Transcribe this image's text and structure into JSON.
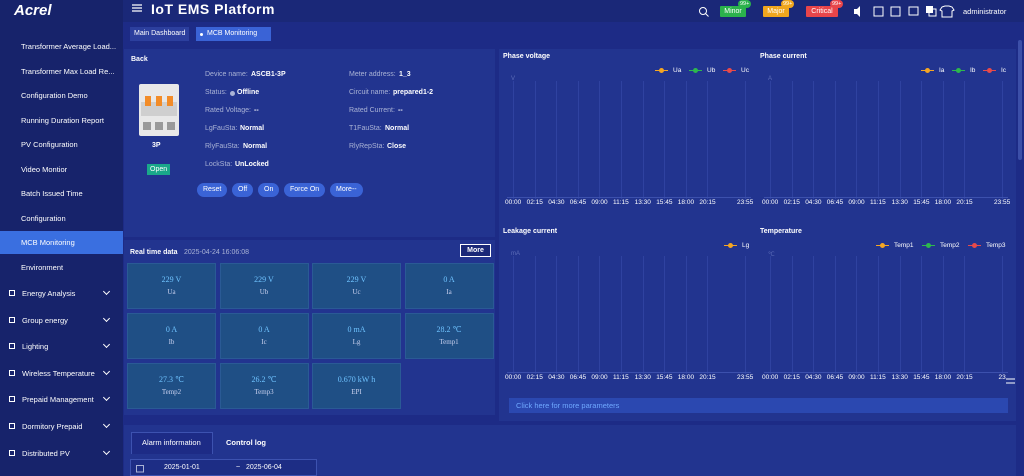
{
  "header": {
    "logo": "Acrel",
    "title": "IoT EMS Platform",
    "alarms": [
      {
        "label": "Minor",
        "count": "99+",
        "color": "#2bb24c"
      },
      {
        "label": "Major",
        "count": "99+",
        "color": "#f0a61e"
      },
      {
        "label": "Critical",
        "count": "99+",
        "color": "#e8454a"
      }
    ],
    "user": "administrator"
  },
  "tabs": [
    "Main Dashboard",
    "MCB Monitoring"
  ],
  "sidebar": {
    "items": [
      "Transformer Average Load...",
      "Transformer Max Load Re...",
      "Configuration Demo",
      "Running Duration Report",
      "PV Configuration",
      "Video Montior",
      "Batch Issued Time",
      "Configuration",
      "MCB Monitoring",
      "Environment"
    ],
    "active": 8,
    "groups": [
      "Energy Analysis",
      "Group energy",
      "Lighting",
      "Wireless Temperature",
      "Prepaid Management",
      "Dormitory Prepaid",
      "Distributed PV"
    ]
  },
  "device": {
    "back": "Back",
    "model": "3P",
    "state": "Open",
    "fields": [
      {
        "label": "Device name:",
        "value": "ASCB1-3P"
      },
      {
        "label": "Meter address:",
        "value": "1_3"
      },
      {
        "label": "Status:",
        "value": "Offline"
      },
      {
        "label": "Circuit name:",
        "value": "prepared1-2"
      },
      {
        "label": "Rated Voltage:",
        "value": "--"
      },
      {
        "label": "Rated Current:",
        "value": "--"
      },
      {
        "label": "LgFauSta:",
        "value": "Normal"
      },
      {
        "label": "T1FauSta:",
        "value": "Normal"
      },
      {
        "label": "RlyFauSta:",
        "value": "Normal"
      },
      {
        "label": "RlyRepSta:",
        "value": "Close"
      },
      {
        "label": "LockSta:",
        "value": "UnLocked"
      }
    ],
    "buttons": [
      "Reset",
      "Off",
      "On",
      "Force On",
      "More--"
    ]
  },
  "realtime": {
    "title": "Real time data",
    "time": "2025-04-24 16:06:08",
    "more": "More",
    "cells": [
      {
        "value": "229 V",
        "name": "Ua"
      },
      {
        "value": "229 V",
        "name": "Ub"
      },
      {
        "value": "229 V",
        "name": "Uc"
      },
      {
        "value": "0 A",
        "name": "Ia"
      },
      {
        "value": "0 A",
        "name": "Ib"
      },
      {
        "value": "0 A",
        "name": "Ic"
      },
      {
        "value": "0 mA",
        "name": "Lg"
      },
      {
        "value": "28.2 ℃",
        "name": "Temp1"
      },
      {
        "value": "27.3 ℃",
        "name": "Temp2"
      },
      {
        "value": "26.2 ℃",
        "name": "Temp3"
      },
      {
        "value": "0.670 kW h",
        "name": "EPI"
      }
    ]
  },
  "charts": [
    {
      "title": "Phase voltage",
      "unit": "V",
      "legend": [
        {
          "name": "Ua",
          "color": "#f5a623"
        },
        {
          "name": "Ub",
          "color": "#2db84d"
        },
        {
          "name": "Uc",
          "color": "#e84a4a"
        }
      ],
      "x": [
        "00:00",
        "02:15",
        "04:30",
        "06:45",
        "09:00",
        "11:15",
        "13:30",
        "15:45",
        "18:00",
        "20:15",
        "23:55"
      ]
    },
    {
      "title": "Phase current",
      "unit": "A",
      "legend": [
        {
          "name": "Ia",
          "color": "#f5a623"
        },
        {
          "name": "Ib",
          "color": "#2db84d"
        },
        {
          "name": "Ic",
          "color": "#e84a4a"
        }
      ],
      "x": [
        "00:00",
        "02:15",
        "04:30",
        "06:45",
        "09:00",
        "11:15",
        "13:30",
        "15:45",
        "18:00",
        "20:15",
        "23:55"
      ]
    },
    {
      "title": "Leakage current",
      "unit": "mA",
      "legend": [
        {
          "name": "Lg",
          "color": "#f5a623"
        }
      ],
      "x": [
        "00:00",
        "02:15",
        "04:30",
        "06:45",
        "09:00",
        "11:15",
        "13:30",
        "15:45",
        "18:00",
        "20:15",
        "23:55"
      ]
    },
    {
      "title": "Temperature",
      "unit": "℃",
      "legend": [
        {
          "name": "Temp1",
          "color": "#f5a623"
        },
        {
          "name": "Temp2",
          "color": "#2db84d"
        },
        {
          "name": "Temp3",
          "color": "#e84a4a"
        }
      ],
      "x": [
        "00:00",
        "02:15",
        "04:30",
        "06:45",
        "09:00",
        "11:15",
        "13:30",
        "15:45",
        "18:00",
        "20:15",
        "23"
      ]
    }
  ],
  "more_params": "Click here for more parameters",
  "bottom": {
    "tabs": [
      "Alarm information",
      "Control log"
    ],
    "start": "2025-01-01",
    "sep": "~",
    "end": "2025-06-04"
  }
}
